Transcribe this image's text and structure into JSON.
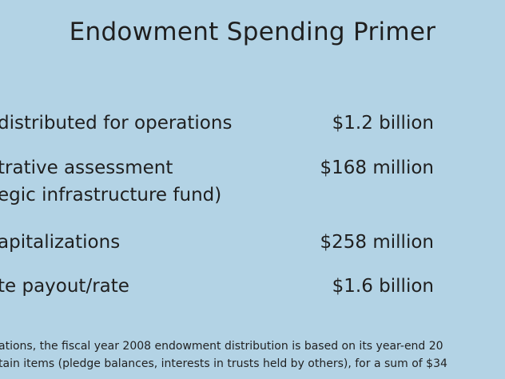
{
  "slide": {
    "title": "Endowment Spending Primer",
    "rows": [
      {
        "label": "distributed for operations",
        "amount": "$1.2 billion"
      },
      {
        "label": "trative assessment",
        "label_line2": "egic infrastructure fund)",
        "amount": "$168 million"
      },
      {
        "label": "apitalizations",
        "amount": "$258 million"
      },
      {
        "label": "te payout/rate",
        "amount": "$1.6 billion"
      }
    ],
    "footnote": {
      "line1": "ations, the fiscal year 2008 endowment distribution is based on its year-end 20",
      "line2": "tain items (pledge balances, interests in trusts held by others), for a sum of $34"
    }
  }
}
